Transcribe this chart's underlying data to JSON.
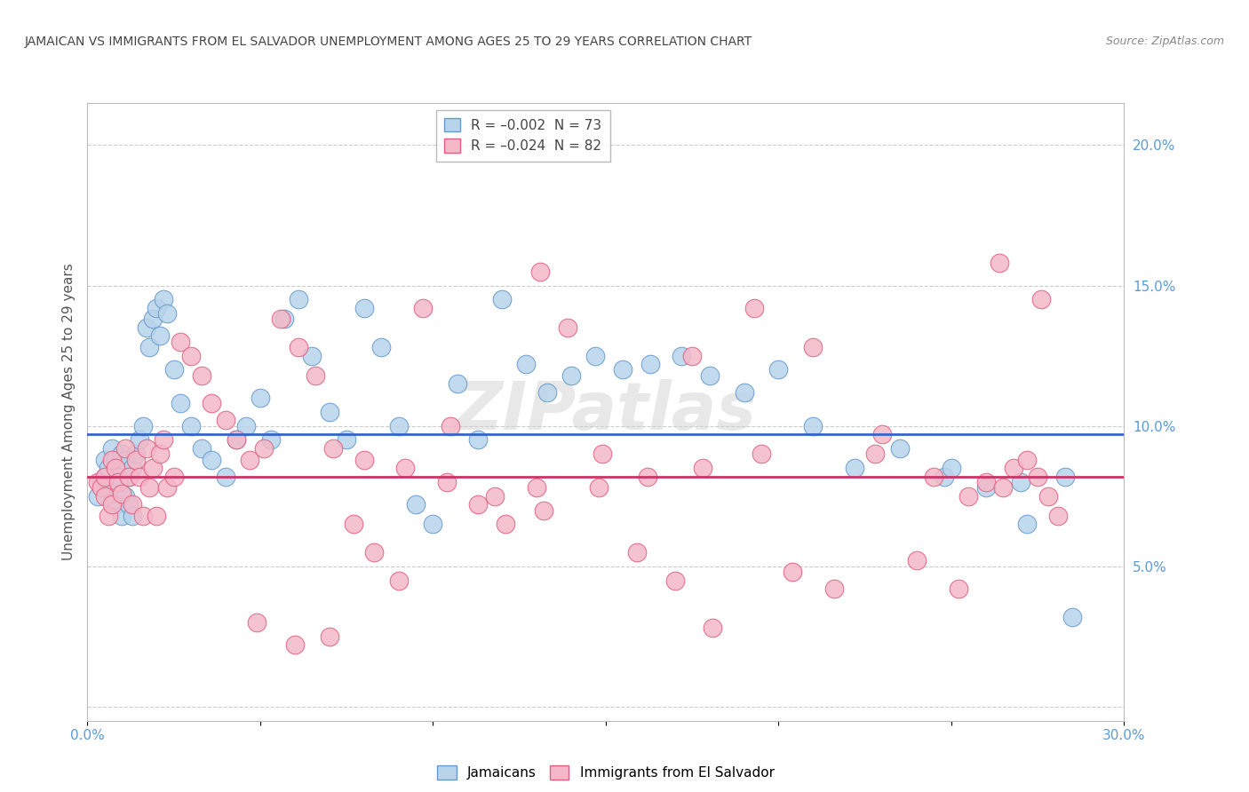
{
  "title": "JAMAICAN VS IMMIGRANTS FROM EL SALVADOR UNEMPLOYMENT AMONG AGES 25 TO 29 YEARS CORRELATION CHART",
  "source": "Source: ZipAtlas.com",
  "ylabel": "Unemployment Among Ages 25 to 29 years",
  "xlim": [
    0.0,
    0.3
  ],
  "ylim": [
    -0.005,
    0.215
  ],
  "xticks": [
    0.0,
    0.05,
    0.1,
    0.15,
    0.2,
    0.25,
    0.3
  ],
  "yticks": [
    0.0,
    0.05,
    0.1,
    0.15,
    0.2
  ],
  "blue_line_y": 0.097,
  "pink_line_y": 0.082,
  "watermark": "ZIPatlas",
  "jamaicans_color": "#b8d4ea",
  "jamaicans_edge": "#6699cc",
  "salvadorans_color": "#f4b8c8",
  "salvadorans_edge": "#e06080",
  "blue_trend_color": "#3366cc",
  "pink_trend_color": "#cc3366",
  "jamaicans_x": [
    0.003,
    0.004,
    0.005,
    0.005,
    0.006,
    0.006,
    0.007,
    0.007,
    0.008,
    0.008,
    0.009,
    0.009,
    0.01,
    0.01,
    0.011,
    0.011,
    0.012,
    0.012,
    0.013,
    0.013,
    0.014,
    0.015,
    0.016,
    0.017,
    0.018,
    0.019,
    0.02,
    0.021,
    0.022,
    0.023,
    0.025,
    0.027,
    0.03,
    0.033,
    0.036,
    0.04,
    0.043,
    0.046,
    0.05,
    0.053,
    0.057,
    0.061,
    0.065,
    0.07,
    0.075,
    0.08,
    0.085,
    0.09,
    0.095,
    0.1,
    0.107,
    0.113,
    0.12,
    0.127,
    0.133,
    0.14,
    0.147,
    0.155,
    0.163,
    0.172,
    0.18,
    0.19,
    0.2,
    0.21,
    0.222,
    0.235,
    0.248,
    0.26,
    0.272,
    0.283,
    0.25,
    0.27,
    0.285
  ],
  "jamaicans_y": [
    0.075,
    0.08,
    0.082,
    0.088,
    0.078,
    0.085,
    0.076,
    0.092,
    0.072,
    0.088,
    0.078,
    0.082,
    0.068,
    0.09,
    0.075,
    0.088,
    0.082,
    0.072,
    0.068,
    0.085,
    0.09,
    0.095,
    0.1,
    0.135,
    0.128,
    0.138,
    0.142,
    0.132,
    0.145,
    0.14,
    0.12,
    0.108,
    0.1,
    0.092,
    0.088,
    0.082,
    0.095,
    0.1,
    0.11,
    0.095,
    0.138,
    0.145,
    0.125,
    0.105,
    0.095,
    0.142,
    0.128,
    0.1,
    0.072,
    0.065,
    0.115,
    0.095,
    0.145,
    0.122,
    0.112,
    0.118,
    0.125,
    0.12,
    0.122,
    0.125,
    0.118,
    0.112,
    0.12,
    0.1,
    0.085,
    0.092,
    0.082,
    0.078,
    0.065,
    0.082,
    0.085,
    0.08,
    0.032
  ],
  "salvadorans_x": [
    0.003,
    0.004,
    0.005,
    0.005,
    0.006,
    0.007,
    0.007,
    0.008,
    0.009,
    0.01,
    0.011,
    0.012,
    0.013,
    0.014,
    0.015,
    0.016,
    0.017,
    0.018,
    0.019,
    0.02,
    0.021,
    0.022,
    0.023,
    0.025,
    0.027,
    0.03,
    0.033,
    0.036,
    0.04,
    0.043,
    0.047,
    0.051,
    0.056,
    0.061,
    0.066,
    0.071,
    0.077,
    0.083,
    0.09,
    0.097,
    0.105,
    0.113,
    0.121,
    0.13,
    0.139,
    0.149,
    0.159,
    0.17,
    0.181,
    0.193,
    0.204,
    0.216,
    0.228,
    0.24,
    0.252,
    0.264,
    0.276,
    0.131,
    0.175,
    0.21,
    0.23,
    0.245,
    0.255,
    0.26,
    0.265,
    0.268,
    0.272,
    0.275,
    0.278,
    0.281,
    0.049,
    0.06,
    0.07,
    0.08,
    0.092,
    0.104,
    0.118,
    0.132,
    0.148,
    0.162,
    0.178,
    0.195
  ],
  "salvadorans_y": [
    0.08,
    0.078,
    0.075,
    0.082,
    0.068,
    0.088,
    0.072,
    0.085,
    0.08,
    0.076,
    0.092,
    0.082,
    0.072,
    0.088,
    0.082,
    0.068,
    0.092,
    0.078,
    0.085,
    0.068,
    0.09,
    0.095,
    0.078,
    0.082,
    0.13,
    0.125,
    0.118,
    0.108,
    0.102,
    0.095,
    0.088,
    0.092,
    0.138,
    0.128,
    0.118,
    0.092,
    0.065,
    0.055,
    0.045,
    0.142,
    0.1,
    0.072,
    0.065,
    0.078,
    0.135,
    0.09,
    0.055,
    0.045,
    0.028,
    0.142,
    0.048,
    0.042,
    0.09,
    0.052,
    0.042,
    0.158,
    0.145,
    0.155,
    0.125,
    0.128,
    0.097,
    0.082,
    0.075,
    0.08,
    0.078,
    0.085,
    0.088,
    0.082,
    0.075,
    0.068,
    0.03,
    0.022,
    0.025,
    0.088,
    0.085,
    0.08,
    0.075,
    0.07,
    0.078,
    0.082,
    0.085,
    0.09
  ]
}
